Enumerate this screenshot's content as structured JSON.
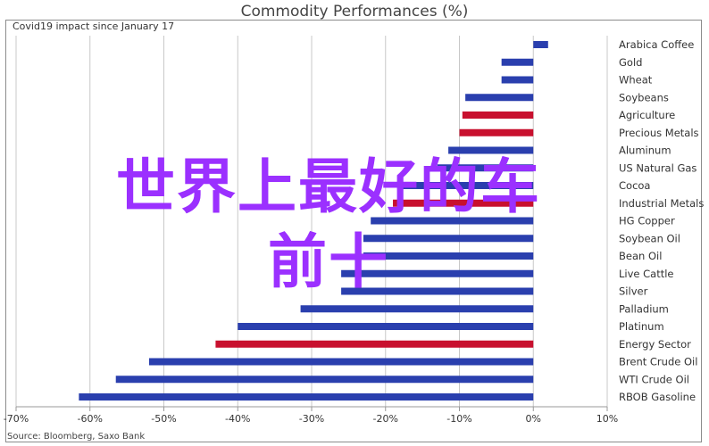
{
  "chart_data": {
    "type": "bar",
    "orientation": "horizontal",
    "title": "Commodity Performances (%)",
    "subtitle": "Covid19 impact since January 17",
    "source": "Source: Bloomberg, Saxo Bank",
    "xlim": [
      -70,
      10
    ],
    "xticks": [
      "-70%",
      "-60%",
      "-50%",
      "-40%",
      "-30%",
      "-20%",
      "-10%",
      "0%",
      "10%"
    ],
    "grid": true,
    "categories": [
      "Arabica Coffee",
      "Gold",
      "Wheat",
      "Soybeans",
      "Agriculture",
      "Precious Metals",
      "Aluminum",
      "US Natural Gas",
      "Cocoa",
      "Industrial Metals",
      "HG Copper",
      "Soybean Oil",
      "Bean Oil",
      "Live Cattle",
      "Silver",
      "Palladium",
      "Platinum",
      "Energy Sector",
      "Brent Crude Oil",
      "WTI Crude Oil",
      "RBOB Gasoline"
    ],
    "values": [
      2,
      -4.3,
      -4.3,
      -9.2,
      -9.6,
      -10,
      -11.5,
      -13,
      -18,
      -19,
      -22,
      -23,
      -23,
      -26,
      -26,
      -31.5,
      -40,
      -43,
      -52,
      -56.5,
      -61.5
    ],
    "sector_flags": [
      false,
      false,
      false,
      false,
      true,
      true,
      false,
      false,
      false,
      true,
      false,
      false,
      false,
      false,
      false,
      false,
      false,
      true,
      false,
      false,
      false
    ],
    "colors": {
      "commodity": "#2a3fae",
      "sector": "#c8102e",
      "grid": "#c8c8c8",
      "axis": "#999999"
    }
  },
  "overlay_text": {
    "line1": "世界上最好的车",
    "line2": "前十"
  }
}
